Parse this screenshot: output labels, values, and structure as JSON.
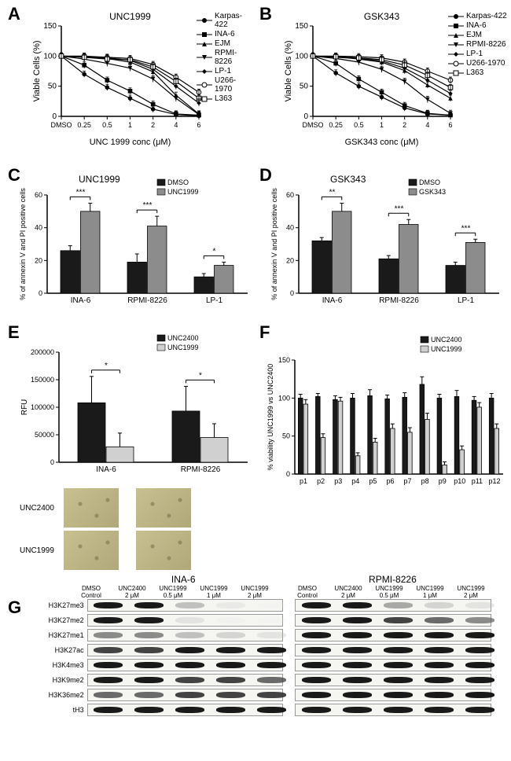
{
  "panelA": {
    "label": "A",
    "title": "UNC1999",
    "type": "line",
    "xlabel": "UNC 1999 conc (μM)",
    "ylabel": "Viable Cells (%)",
    "x_ticks": [
      "DMSO",
      "0.25",
      "0.5",
      "1",
      "2",
      "4",
      "6"
    ],
    "ylim": [
      0,
      150
    ],
    "ytick_step": 50,
    "colors": {
      "line": "#000",
      "bg": "#fff",
      "grid": "#000"
    },
    "series": [
      {
        "name": "Karpas-422",
        "marker": "circle-filled",
        "y": [
          100,
          70,
          48,
          30,
          12,
          3,
          1
        ]
      },
      {
        "name": "INA-6",
        "marker": "square-filled",
        "y": [
          100,
          85,
          60,
          42,
          20,
          4,
          2
        ]
      },
      {
        "name": "EJM",
        "marker": "triangle-up-filled",
        "y": [
          100,
          98,
          96,
          90,
          74,
          35,
          4
        ]
      },
      {
        "name": "RPMI-8226",
        "marker": "triangle-down-filled",
        "y": [
          100,
          95,
          88,
          80,
          62,
          30,
          3
        ]
      },
      {
        "name": "LP-1",
        "marker": "diamond",
        "y": [
          100,
          99,
          97,
          93,
          78,
          50,
          22
        ]
      },
      {
        "name": "U266-1970",
        "marker": "circle-open",
        "y": [
          100,
          100,
          98,
          96,
          86,
          65,
          40
        ]
      },
      {
        "name": "L363",
        "marker": "square-open",
        "y": [
          100,
          98,
          95,
          94,
          82,
          58,
          30
        ]
      }
    ]
  },
  "panelB": {
    "label": "B",
    "title": "GSK343",
    "type": "line",
    "xlabel": "GSK343 conc (μM)",
    "ylabel": "Viable Cells (%)",
    "x_ticks": [
      "DMSO",
      "0.25",
      "0.5",
      "1",
      "2",
      "4",
      "6"
    ],
    "ylim": [
      0,
      150
    ],
    "ytick_step": 50,
    "series": [
      {
        "name": "Karpas-422",
        "marker": "circle-filled",
        "y": [
          100,
          72,
          50,
          32,
          14,
          4,
          2
        ]
      },
      {
        "name": "INA-6",
        "marker": "square-filled",
        "y": [
          100,
          88,
          62,
          40,
          18,
          5,
          2
        ]
      },
      {
        "name": "EJM",
        "marker": "triangle-up-filled",
        "y": [
          100,
          99,
          95,
          90,
          76,
          52,
          30
        ]
      },
      {
        "name": "RPMI-8226",
        "marker": "triangle-down-filled",
        "y": [
          100,
          96,
          90,
          78,
          58,
          28,
          5
        ]
      },
      {
        "name": "LP-1",
        "marker": "diamond",
        "y": [
          100,
          98,
          96,
          92,
          80,
          60,
          38
        ]
      },
      {
        "name": "U266-1970",
        "marker": "circle-open",
        "y": [
          100,
          100,
          99,
          97,
          90,
          75,
          60
        ]
      },
      {
        "name": "L363",
        "marker": "square-open",
        "y": [
          100,
          99,
          97,
          94,
          85,
          68,
          48
        ]
      }
    ]
  },
  "panelC": {
    "label": "C",
    "title": "UNC1999",
    "type": "bar",
    "ylabel": "% of annexin V and PI positive cells",
    "categories": [
      "INA-6",
      "RPMI-8226",
      "LP-1"
    ],
    "ylim": [
      0,
      60
    ],
    "ytick_step": 20,
    "groups": [
      {
        "name": "DMSO",
        "color": "#1a1a1a",
        "values": [
          26,
          19,
          10
        ],
        "err": [
          3,
          5,
          2
        ]
      },
      {
        "name": "UNC1999",
        "color": "#8c8c8c",
        "values": [
          50,
          41,
          17
        ],
        "err": [
          5,
          6,
          2
        ]
      }
    ],
    "sig": [
      "***",
      "***",
      "*"
    ]
  },
  "panelD": {
    "label": "D",
    "title": "GSK343",
    "type": "bar",
    "ylabel": "% of annexin V and PI positive cells",
    "categories": [
      "INA-6",
      "RPMI-8226",
      "LP-1"
    ],
    "ylim": [
      0,
      60
    ],
    "ytick_step": 20,
    "groups": [
      {
        "name": "DMSO",
        "color": "#1a1a1a",
        "values": [
          32,
          21,
          17
        ],
        "err": [
          2,
          2,
          2
        ]
      },
      {
        "name": "GSK343",
        "color": "#8c8c8c",
        "values": [
          50,
          42,
          31
        ],
        "err": [
          5,
          3,
          2
        ]
      }
    ],
    "sig": [
      "**",
      "***",
      "***"
    ]
  },
  "panelE": {
    "label": "E",
    "type": "bar",
    "ylabel": "RFU",
    "categories": [
      "INA-6",
      "RPMI-8226"
    ],
    "ylim": [
      0,
      200000
    ],
    "ytick_step": 50000,
    "groups": [
      {
        "name": "UNC2400",
        "color": "#1a1a1a",
        "values": [
          108000,
          93000
        ],
        "err": [
          48000,
          45000
        ]
      },
      {
        "name": "UNC1999",
        "color": "#d0d0d0",
        "values": [
          28000,
          45000
        ],
        "err": [
          25000,
          25000
        ]
      }
    ],
    "sig": [
      "*",
      "*"
    ],
    "micrograph_rows": [
      "UNC2400",
      "UNC1999"
    ]
  },
  "panelF": {
    "label": "F",
    "type": "bar",
    "ylabel": "% viability UNC1999 vs UNC2400",
    "categories": [
      "p1",
      "p2",
      "p3",
      "p4",
      "p5",
      "p6",
      "p7",
      "p8",
      "p9",
      "p10",
      "p11",
      "p12"
    ],
    "ylim": [
      0,
      150
    ],
    "ytick_step": 50,
    "groups": [
      {
        "name": "UNC2400",
        "color": "#1a1a1a",
        "values": [
          100,
          102,
          98,
          100,
          103,
          99,
          101,
          118,
          100,
          102,
          97,
          100
        ],
        "err": [
          5,
          4,
          5,
          6,
          8,
          5,
          6,
          10,
          5,
          8,
          5,
          6
        ]
      },
      {
        "name": "UNC1999",
        "color": "#d0d0d0",
        "values": [
          92,
          48,
          96,
          24,
          42,
          60,
          55,
          72,
          12,
          32,
          88,
          60
        ],
        "err": [
          6,
          5,
          5,
          4,
          5,
          6,
          6,
          8,
          4,
          5,
          6,
          6
        ]
      }
    ]
  },
  "panelG": {
    "label": "G",
    "type": "western-blot",
    "cell_lines": [
      "INA-6",
      "RPMI-8226"
    ],
    "lanes": [
      "DMSO Control",
      "UNC2400 2 μM",
      "UNC1999 0.5 μM",
      "UNC1999 1 μM",
      "UNC1999 2 μM"
    ],
    "antibodies": [
      "H3K27me3",
      "H3K27me2",
      "H3K27me1",
      "H3K27ac",
      "H3K4me3",
      "H3K9me2",
      "H3K36me2",
      "tH3"
    ],
    "intensity": {
      "INA-6": {
        "H3K27me3": [
          1,
          1,
          0.5,
          0.25,
          0.1
        ],
        "H3K27me2": [
          1,
          1,
          0.3,
          0.15,
          0.08
        ],
        "H3K27me1": [
          0.7,
          0.7,
          0.5,
          0.4,
          0.3
        ],
        "H3K27ac": [
          0.9,
          0.9,
          1,
          1,
          1
        ],
        "H3K4me3": [
          1,
          1,
          1,
          1,
          1
        ],
        "H3K9me2": [
          1,
          1,
          0.9,
          0.9,
          0.8
        ],
        "H3K36me2": [
          0.8,
          0.8,
          0.9,
          0.9,
          0.9
        ],
        "tH3": [
          1,
          1,
          1,
          1,
          1
        ]
      },
      "RPMI-8226": {
        "H3K27me3": [
          1,
          1,
          0.6,
          0.4,
          0.3
        ],
        "H3K27me2": [
          1,
          1,
          0.9,
          0.8,
          0.7
        ],
        "H3K27me1": [
          1,
          1,
          1,
          1,
          1
        ],
        "H3K27ac": [
          1,
          1,
          1,
          1,
          1
        ],
        "H3K4me3": [
          1,
          1,
          1,
          1,
          1
        ],
        "H3K9me2": [
          1,
          1,
          1,
          1,
          1
        ],
        "H3K36me2": [
          1,
          1,
          1,
          1,
          1
        ],
        "tH3": [
          1,
          1,
          1,
          1,
          1
        ]
      }
    }
  }
}
